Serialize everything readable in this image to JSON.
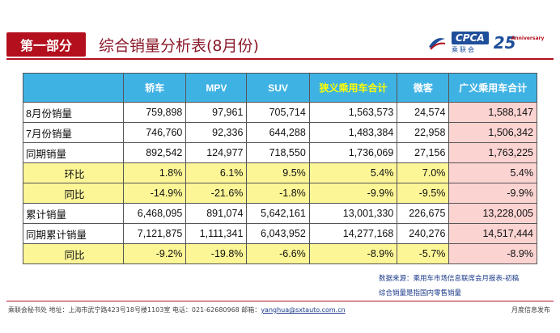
{
  "header": {
    "section_tag": "第一部分",
    "title": "综合销量分析表(8月份)",
    "logo_text": "CPCA",
    "logo_cn": "乘联会",
    "logo_anniv": "25",
    "logo_anniv_small": "Anniversary"
  },
  "table": {
    "columns": [
      "",
      "轿车",
      "MPV",
      "SUV",
      "狭义乘用车合计",
      "微客",
      "广义乘用车合计"
    ],
    "rows": [
      {
        "label": "8月份销量",
        "values": [
          "759,898",
          "97,961",
          "705,714",
          "1,563,573",
          "24,574",
          "1,588,147"
        ]
      },
      {
        "label": "7月份销量",
        "values": [
          "746,760",
          "92,336",
          "644,288",
          "1,483,384",
          "22,958",
          "1,506,342"
        ]
      },
      {
        "label": "同期销量",
        "values": [
          "892,542",
          "124,977",
          "718,550",
          "1,736,069",
          "27,156",
          "1,763,225"
        ]
      },
      {
        "label": "环比",
        "values": [
          "1.8%",
          "6.1%",
          "9.5%",
          "5.4%",
          "7.0%",
          "5.4%"
        ]
      },
      {
        "label": "同比",
        "values": [
          "-14.9%",
          "-21.6%",
          "-1.8%",
          "-9.9%",
          "-9.5%",
          "-9.9%"
        ]
      },
      {
        "label": "累计销量",
        "values": [
          "6,468,095",
          "891,074",
          "5,642,161",
          "13,001,330",
          "226,675",
          "13,228,005"
        ]
      },
      {
        "label": "同期累计销量",
        "values": [
          "7,121,875",
          "1,111,341",
          "6,043,952",
          "14,277,168",
          "240,276",
          "14,517,444"
        ]
      },
      {
        "label": "同比",
        "values": [
          "-9.2%",
          "-19.8%",
          "-6.6%",
          "-8.9%",
          "-5.7%",
          "-8.9%"
        ]
      }
    ]
  },
  "notes": {
    "source": "数据来源：乘用车市场信息联席会月报表-初稿",
    "definition": "综合销量是指国内零售销量"
  },
  "footer": {
    "contact": "乘联会秘书处 地址：上海市武宁路423号18号楼1103室 电话：021-62680968 邮箱：",
    "email": "yanghua@sxtauto.com.cn",
    "right": "月度信息发布"
  },
  "colors": {
    "header_bg": "#3fb2e4",
    "ratio_row_bg": "#fdf697",
    "last_col_bg": "#fbd4d2",
    "brand_red": "#b30f1d"
  }
}
